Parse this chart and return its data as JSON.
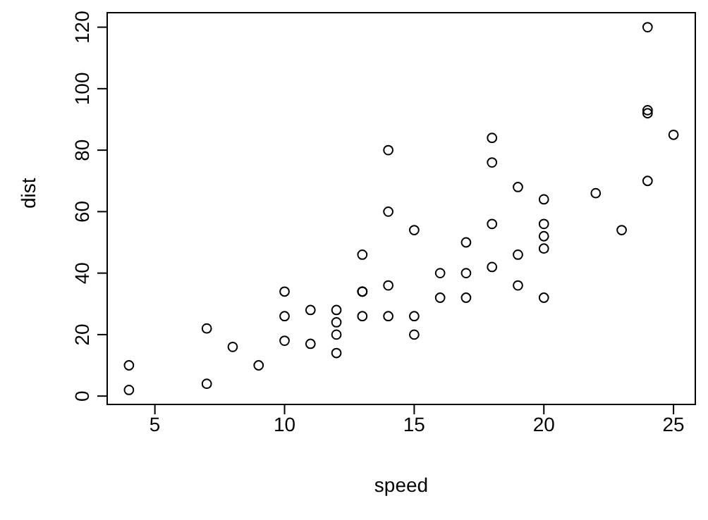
{
  "chart_data": {
    "type": "scatter",
    "xlabel": "speed",
    "ylabel": "dist",
    "x": [
      4,
      4,
      7,
      7,
      8,
      9,
      10,
      10,
      10,
      11,
      11,
      12,
      12,
      12,
      12,
      13,
      13,
      13,
      13,
      14,
      14,
      14,
      14,
      15,
      15,
      15,
      16,
      16,
      17,
      17,
      17,
      18,
      18,
      18,
      18,
      19,
      19,
      19,
      20,
      20,
      20,
      20,
      20,
      22,
      23,
      24,
      24,
      24,
      24,
      25
    ],
    "series": [
      {
        "color": "#000000",
        "values": [
          2,
          10,
          4,
          22,
          16,
          10,
          18,
          26,
          34,
          17,
          28,
          14,
          20,
          24,
          28,
          26,
          34,
          34,
          46,
          26,
          36,
          60,
          80,
          20,
          26,
          54,
          32,
          40,
          32,
          40,
          50,
          42,
          56,
          76,
          84,
          36,
          46,
          68,
          32,
          48,
          52,
          56,
          64,
          66,
          54,
          70,
          92,
          93,
          120,
          85
        ]
      }
    ],
    "xlim": [
      3.16,
      25.84
    ],
    "xticks": [
      5,
      10,
      15,
      20,
      25
    ],
    "ylim": [
      -2.72,
      124.72
    ],
    "yticks": [
      0,
      20,
      40,
      60,
      80,
      100,
      120
    ],
    "marker": "circle",
    "grid": false
  }
}
